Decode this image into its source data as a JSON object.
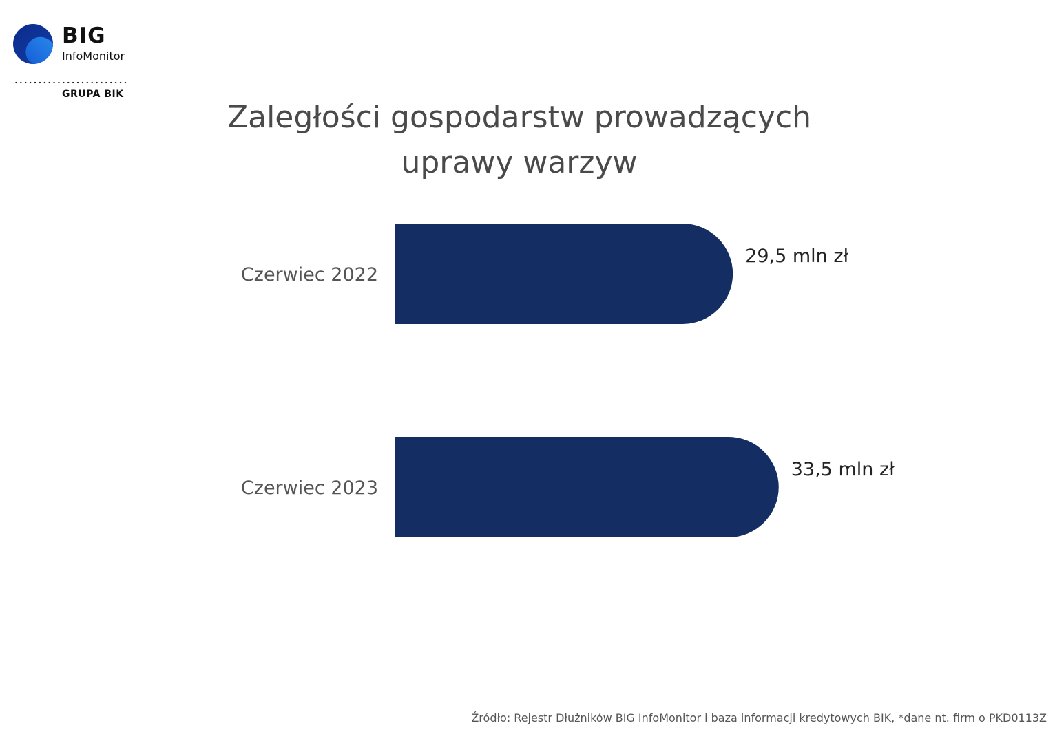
{
  "logo": {
    "brand": "BIG",
    "product": "InfoMonitor",
    "group": "GRUPA BIK"
  },
  "colors": {
    "bar": "#142e63",
    "logo_dark": "#0a2d8c",
    "logo_light": "#1e7be0"
  },
  "chart_data": {
    "type": "bar",
    "orientation": "horizontal",
    "title": "Zaległości gospodarstw prowadzących uprawy warzyw",
    "title_lines": [
      "Zaległości gospodarstw prowadzących",
      "uprawy warzyw"
    ],
    "categories": [
      "Czerwiec 2022",
      "Czerwiec 2023"
    ],
    "values": [
      29.5,
      33.5
    ],
    "value_labels": [
      "29,5 mln zł",
      "33,5 mln zł"
    ],
    "unit": "mln zł",
    "grid": false,
    "legend": "none"
  },
  "source": "Źródło: Rejestr Dłużników BIG InfoMonitor i baza informacji kredytowych BIK, *dane nt. firm o PKD0113Z"
}
